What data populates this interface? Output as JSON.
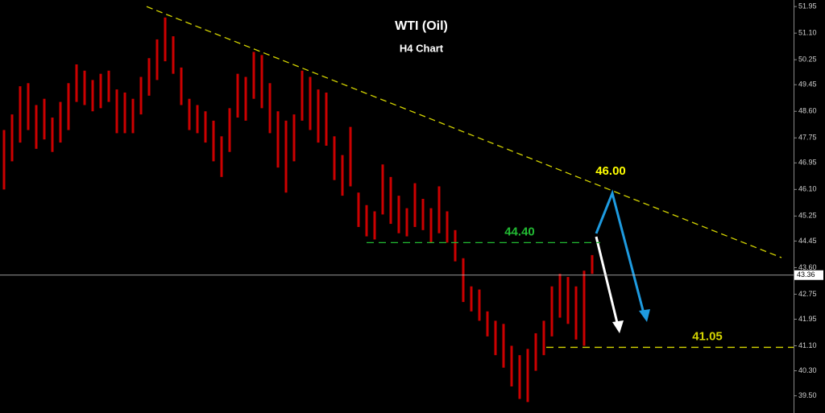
{
  "chart_data": {
    "type": "range_bar",
    "title": "WTI (Oil)",
    "subtitle": "H4 Chart",
    "color": "#cc0000",
    "x": [
      0,
      1,
      2,
      3,
      4,
      5,
      6,
      7,
      8,
      9,
      10,
      11,
      12,
      13,
      14,
      15,
      16,
      17,
      18,
      19,
      20,
      21,
      22,
      23,
      24,
      25,
      26,
      27,
      28,
      29,
      30,
      31,
      32,
      33,
      34,
      35,
      36,
      37,
      38,
      39,
      40,
      41,
      42,
      43,
      44,
      45,
      46,
      47,
      48,
      49,
      50,
      51,
      52,
      53,
      54,
      55,
      56,
      57,
      58,
      59,
      60,
      61,
      62,
      63,
      64,
      65,
      66,
      67,
      68,
      69,
      70,
      71,
      72,
      73
    ],
    "high": [
      48.0,
      48.5,
      49.4,
      49.5,
      48.8,
      49.0,
      48.4,
      48.9,
      49.5,
      50.1,
      49.9,
      49.6,
      49.8,
      49.9,
      49.3,
      49.2,
      49.0,
      49.7,
      50.3,
      50.9,
      51.6,
      51.0,
      50.0,
      49.0,
      48.8,
      48.6,
      48.3,
      47.8,
      48.7,
      49.8,
      49.7,
      50.5,
      50.4,
      49.5,
      48.6,
      48.3,
      48.5,
      49.9,
      49.7,
      49.3,
      49.2,
      47.8,
      47.2,
      48.1,
      46.0,
      45.6,
      45.4,
      46.9,
      46.5,
      45.9,
      45.5,
      46.3,
      45.8,
      45.5,
      46.2,
      45.4,
      44.8,
      43.9,
      43.0,
      42.9,
      42.2,
      41.9,
      41.8,
      41.1,
      40.8,
      41.0,
      41.5,
      41.9,
      43.0,
      43.4,
      43.3,
      43.0,
      43.5,
      44.0
    ],
    "low": [
      46.1,
      47.0,
      47.6,
      48.0,
      47.4,
      47.7,
      47.3,
      47.6,
      48.0,
      48.9,
      48.8,
      48.6,
      48.7,
      48.9,
      47.9,
      47.9,
      47.9,
      48.5,
      49.1,
      49.6,
      50.2,
      49.8,
      48.8,
      48.0,
      47.9,
      47.6,
      47.0,
      46.5,
      47.3,
      48.4,
      48.3,
      49.0,
      48.7,
      47.9,
      46.8,
      46.0,
      47.0,
      48.3,
      48.0,
      47.6,
      47.5,
      46.4,
      45.9,
      46.2,
      44.9,
      44.6,
      44.5,
      45.3,
      45.0,
      44.7,
      44.6,
      44.9,
      44.8,
      44.4,
      44.7,
      44.4,
      43.8,
      42.5,
      42.2,
      41.9,
      41.4,
      40.8,
      40.4,
      39.8,
      39.4,
      39.3,
      40.3,
      40.8,
      41.4,
      42.0,
      41.8,
      41.3,
      41.1,
      43.4
    ],
    "xlim": [
      -0.5,
      98
    ],
    "ylim": [
      38.95,
      52.16
    ],
    "yticks": [
      51.95,
      {
        "value": 51.1,
        "label": "51.10"
      },
      50.25,
      49.45,
      {
        "value": 48.6,
        "label": "48.60"
      },
      47.75,
      46.95,
      {
        "value": 46.1,
        "label": "46.10"
      },
      45.25,
      44.45,
      {
        "value": 43.6,
        "label": "43.60"
      },
      42.75,
      41.95,
      {
        "value": 41.1,
        "label": "41.10"
      },
      {
        "value": 40.3,
        "label": "40.30"
      },
      {
        "value": 39.5,
        "label": "39.50"
      }
    ],
    "current_price": 43.36,
    "trendline": {
      "x": [
        17.7,
        96.5
      ],
      "y": [
        51.95,
        43.92
      ],
      "color": "#d4d400"
    },
    "levels": [
      {
        "label": "44.40",
        "value": 44.4,
        "x": [
          45,
          74
        ],
        "color": "#22bb33"
      },
      {
        "label": "41.05",
        "value": 41.05,
        "x": [
          67.3,
          98
        ],
        "color": "#d4d400"
      }
    ],
    "target": {
      "label": "46.00",
      "value": 46.0,
      "color": "#ffff00"
    }
  }
}
